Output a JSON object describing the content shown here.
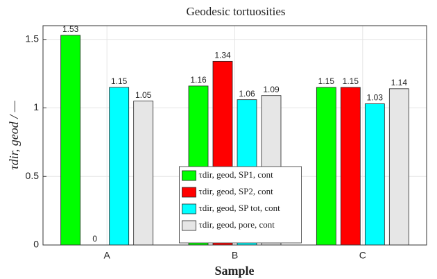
{
  "chart_data": {
    "type": "bar",
    "title": "Geodesic tortuosities",
    "xlabel": "Sample",
    "ylabel": "τdir, geod / —",
    "categories": [
      "A",
      "B",
      "C"
    ],
    "series": [
      {
        "name": "τdir, geod, SP1, cont",
        "color": "#00ff00",
        "values": [
          1.53,
          1.16,
          1.15
        ]
      },
      {
        "name": "τdir, geod, SP2, cont",
        "color": "#ff0000",
        "values": [
          0,
          1.34,
          1.15
        ]
      },
      {
        "name": "τdir, geod, SP tot, cont",
        "color": "#00ffff",
        "values": [
          1.15,
          1.06,
          1.03
        ]
      },
      {
        "name": "τdir, geod, pore, cont",
        "color": "#e6e6e6",
        "values": [
          1.05,
          1.09,
          1.14
        ]
      }
    ],
    "ylim": [
      0,
      1.6
    ],
    "yticks": [
      0,
      0.5,
      1,
      1.5
    ],
    "grid": true,
    "legend": "south"
  }
}
